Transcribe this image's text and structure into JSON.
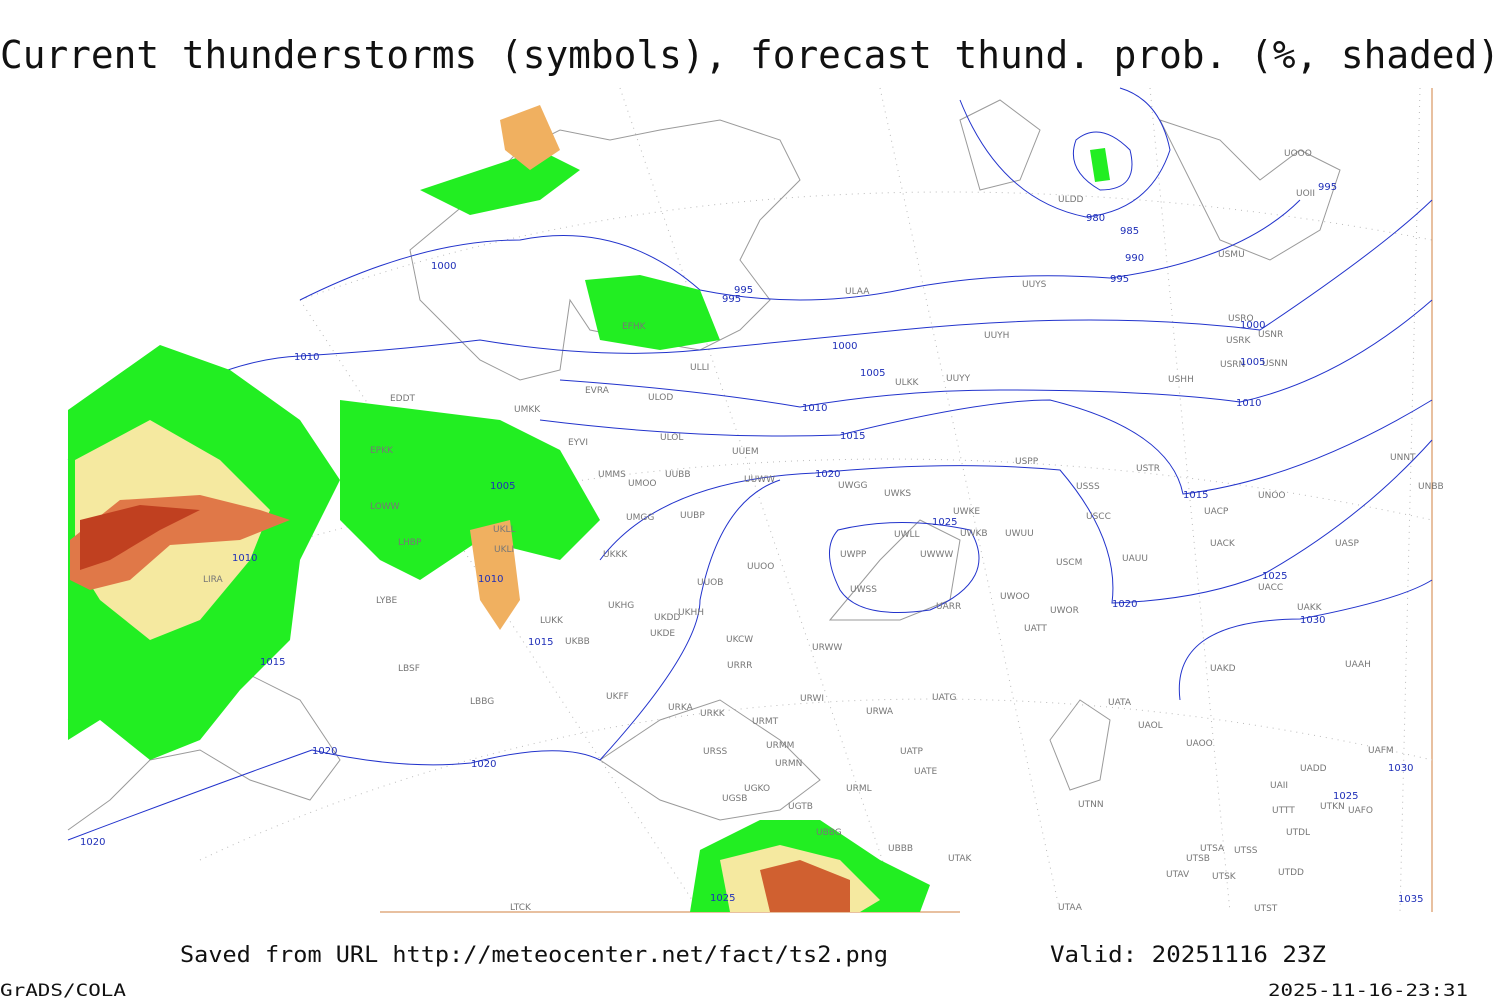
{
  "title": "Current thunderstorms (symbols), forecast thund. prob. (%, shaded)",
  "stations": [
    "ULDD",
    "UOII",
    "UOOO",
    "ULAA",
    "UUYS",
    "USMU",
    "USRO",
    "USRK",
    "USNR",
    "USRN",
    "USNN",
    "UUYH",
    "EFHK",
    "ULLI",
    "ULKK",
    "UUYY",
    "USHH",
    "EVRA",
    "ULOD",
    "EDDT",
    "UMKK",
    "EYVI",
    "ULOL",
    "UUEM",
    "EPKK",
    "UMMS",
    "UMOO",
    "UUBB",
    "UUWW",
    "UWGG",
    "UWKS",
    "USSS",
    "USTR",
    "USPP",
    "UNNT",
    "UNBB",
    "UNOO",
    "UWKE",
    "UMGG",
    "UUBP",
    "USCC",
    "UACP",
    "LOWW",
    "UKLL",
    "UKLI",
    "LHBP",
    "UWLL",
    "UWKB",
    "UWUU",
    "UACK",
    "UASP",
    "UKKK",
    "UWPP",
    "UWWW",
    "USCM",
    "UAUU",
    "LIRA",
    "UUOB",
    "UUOO",
    "UWSS",
    "UACC",
    "LYBE",
    "UKHH",
    "UKDD",
    "UKHG",
    "UARR",
    "UWOO",
    "UWOR",
    "UAKK",
    "LUKK",
    "UKDE",
    "URWW",
    "UKCW",
    "UATT",
    "UKBB",
    "LBSF",
    "URRR",
    "UAKD",
    "UAAH",
    "UKFF",
    "LBBG",
    "URWI",
    "UATG",
    "URKA",
    "URKK",
    "URWA",
    "UATA",
    "URMT",
    "UAOL",
    "UAOO",
    "URSS",
    "URMM",
    "UATP",
    "UATE",
    "URMN",
    "UADD",
    "UAFM",
    "URML",
    "UAII",
    "UGKO",
    "UGTB",
    "UGSB",
    "UTKN",
    "UAFO",
    "UTNN",
    "UTTT",
    "UBBG",
    "UTDL",
    "UBBB",
    "UTSA",
    "UTSS",
    "UTSB",
    "UTAK",
    "UTAV",
    "UTSK",
    "UTDD",
    "UTAA",
    "UTST",
    "LTCK"
  ],
  "isobar_labels": [
    1000,
    1010,
    995,
    995,
    980,
    985,
    990,
    995,
    1000,
    1005,
    1010,
    1015,
    1020,
    1025,
    1005,
    1010,
    1010,
    1015,
    1015,
    1020,
    1020,
    1020,
    1025,
    1000,
    1005,
    1010,
    1015,
    1020,
    1025,
    1030,
    1030,
    1025,
    1035,
    995
  ],
  "footer": {
    "source": "Saved from URL http://meteocenter.net/fact/ts2.png",
    "valid": "Valid: 20251116 23Z",
    "software": "GrADS/COLA",
    "timestamp": "2025-11-16-23:31"
  }
}
